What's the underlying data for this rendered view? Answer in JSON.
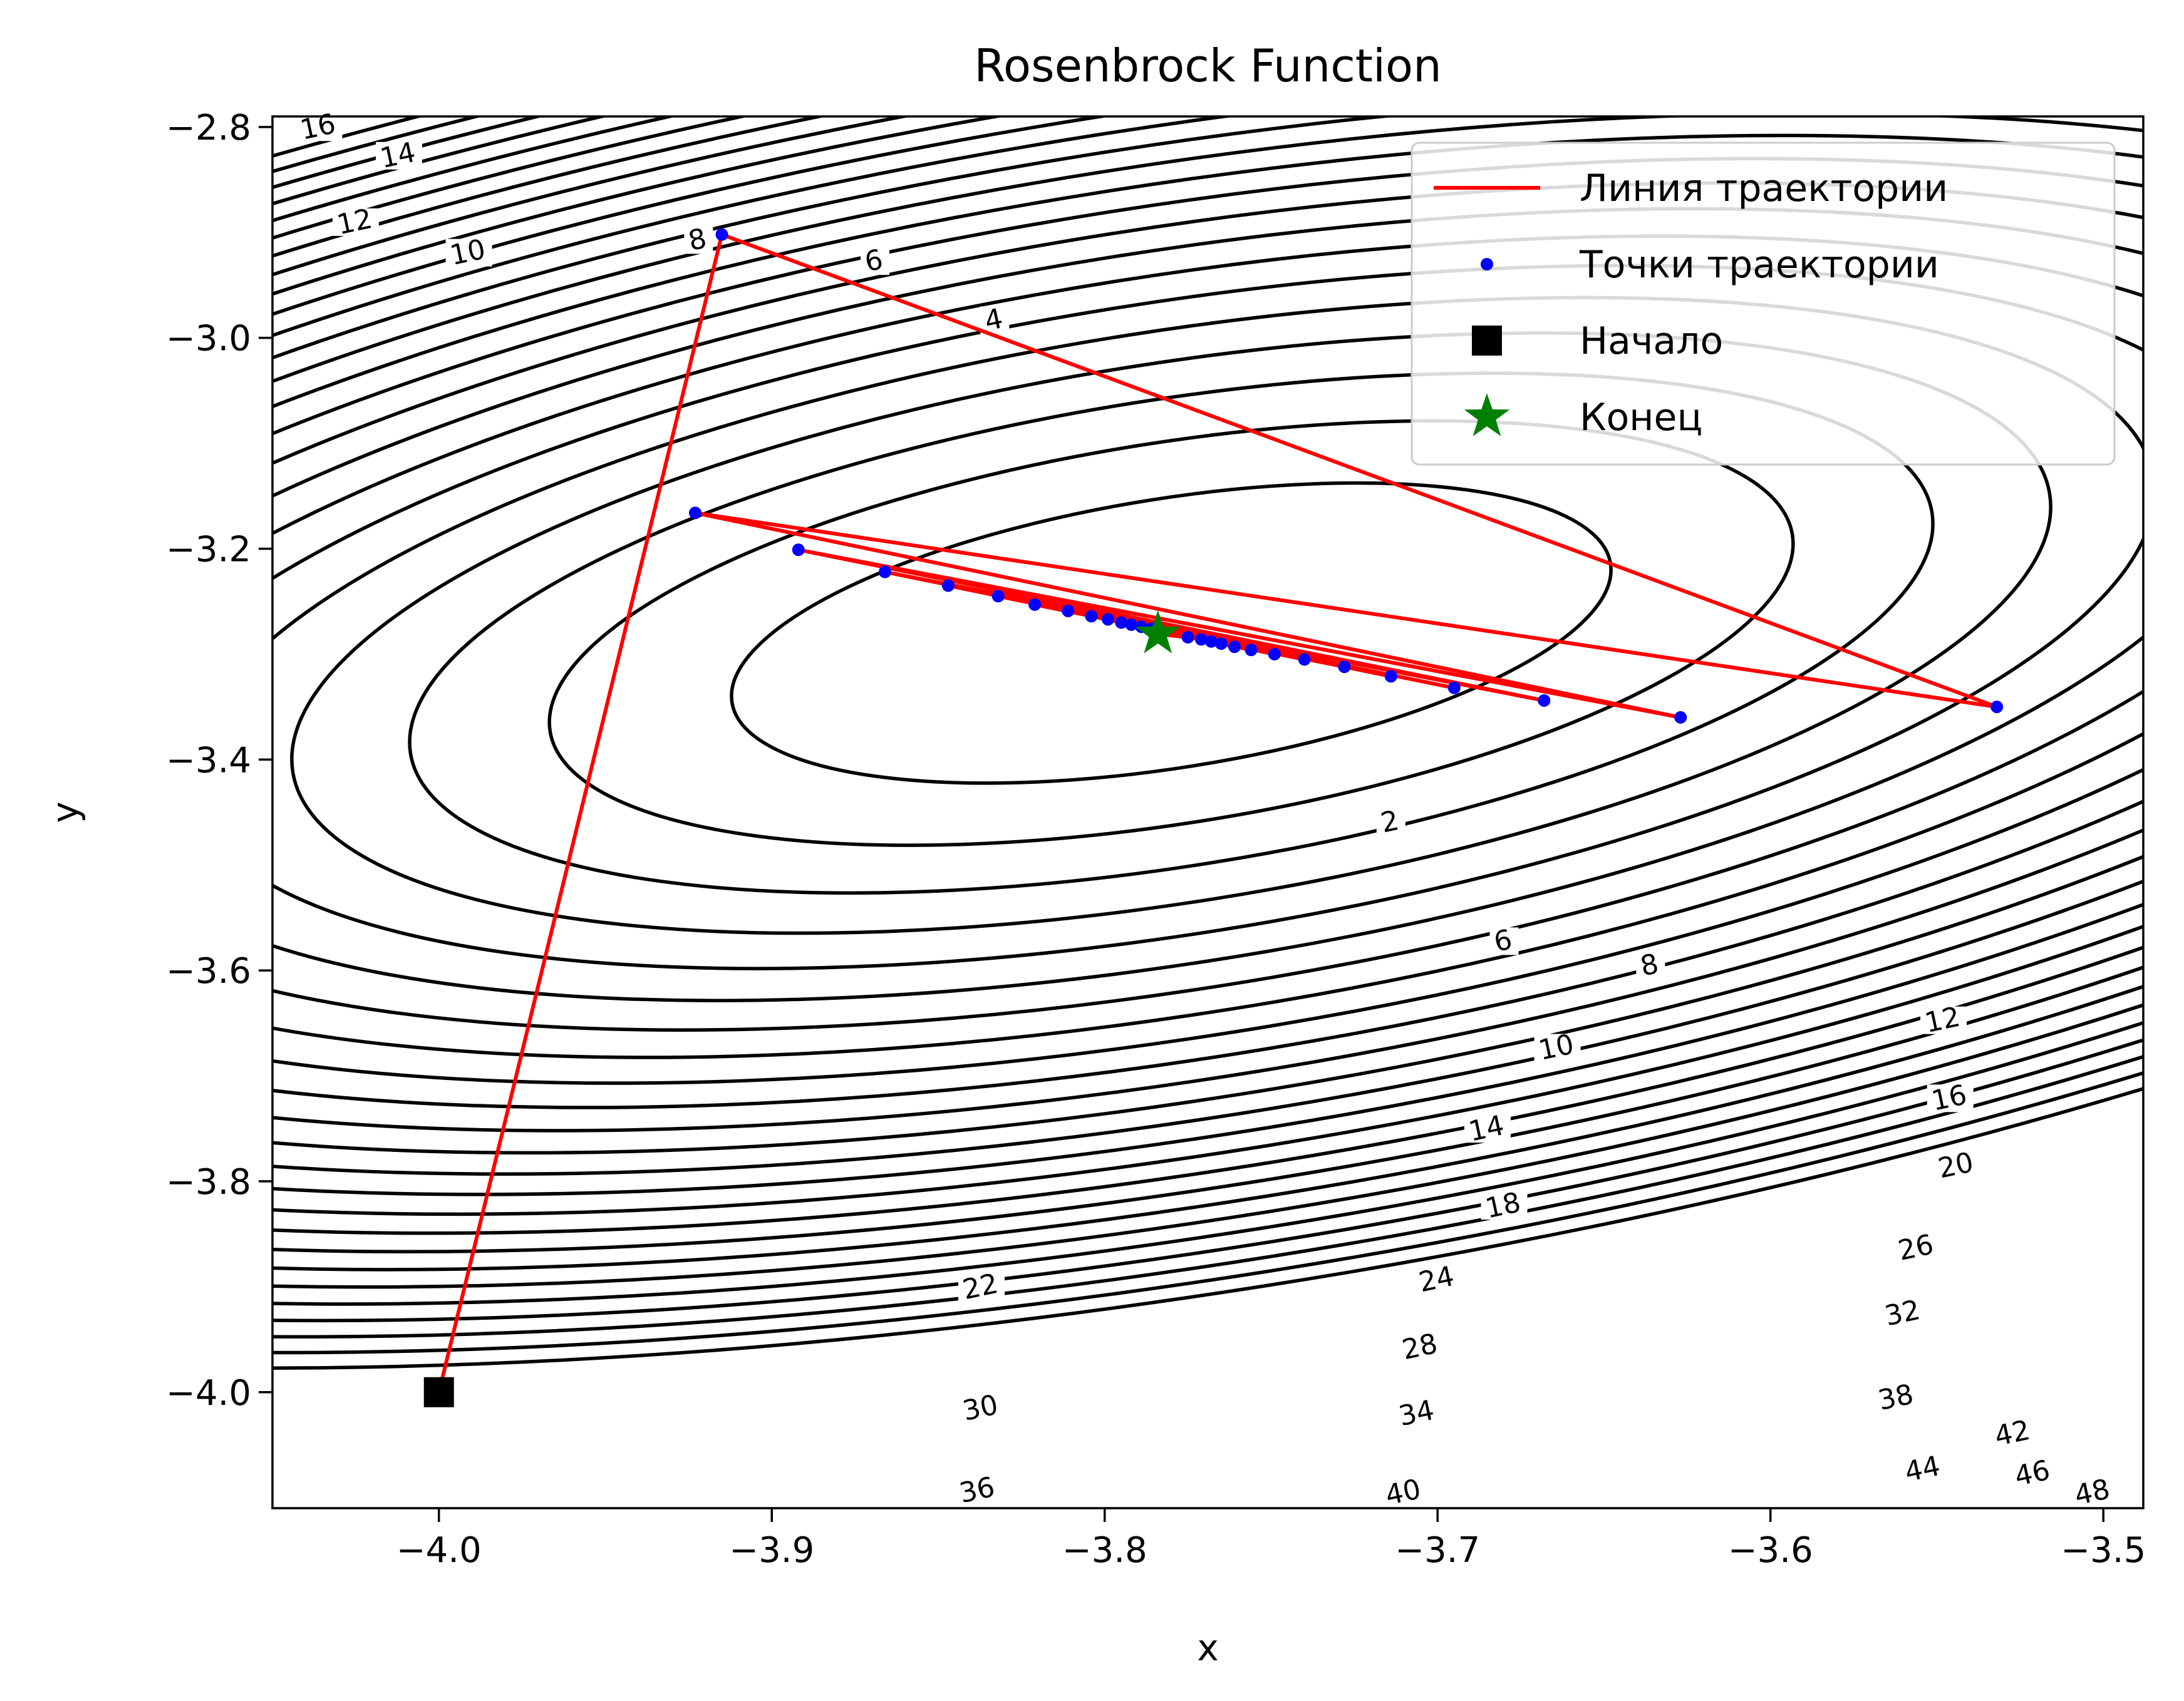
{
  "chart_data": {
    "type": "line",
    "title": "Rosenbrock Function",
    "xlabel": "x",
    "ylabel": "y",
    "xlim": [
      -4.05,
      -3.488
    ],
    "ylim": [
      -4.11,
      -2.79
    ],
    "x_ticks": [
      -4.0,
      -3.9,
      -3.8,
      -3.7,
      -3.6,
      -3.5
    ],
    "x_tick_labels": [
      "−4.0",
      "−3.9",
      "−3.8",
      "−3.7",
      "−3.6",
      "−3.5"
    ],
    "y_ticks": [
      -2.8,
      -3.0,
      -3.2,
      -3.4,
      -3.6,
      -3.8,
      -4.0
    ],
    "y_tick_labels": [
      "−2.8",
      "−3.0",
      "−3.2",
      "−3.4",
      "−3.6",
      "−3.8",
      "−4.0"
    ],
    "grid": false,
    "legend": {
      "position": "top-right",
      "entries": [
        {
          "label": "Линия траектории",
          "marker": "line",
          "color": "#ff0000"
        },
        {
          "label": "Точки траектории",
          "marker": "dot",
          "color": "#0000ff"
        },
        {
          "label": "Начало",
          "marker": "square",
          "color": "#000000"
        },
        {
          "label": "Конец",
          "marker": "star",
          "color": "#008000"
        }
      ]
    },
    "contour": {
      "color": "#000000",
      "center": [
        -3.78,
        -3.28
      ],
      "levels": [
        2,
        4,
        6,
        8,
        10,
        12,
        14,
        16,
        18,
        20,
        22,
        24,
        26,
        28,
        30,
        32,
        34,
        36,
        38,
        40,
        42,
        44,
        46,
        48
      ],
      "labels": [
        {
          "text": "16",
          "x": -4.036,
          "y": -2.805
        },
        {
          "text": "14",
          "x": -4.012,
          "y": -2.832
        },
        {
          "text": "12",
          "x": -4.025,
          "y": -2.895
        },
        {
          "text": "10",
          "x": -3.991,
          "y": -2.924
        },
        {
          "text": "8",
          "x": -3.922,
          "y": -2.912
        },
        {
          "text": "6",
          "x": -3.869,
          "y": -2.932
        },
        {
          "text": "4",
          "x": -3.833,
          "y": -2.988
        },
        {
          "text": "2",
          "x": -3.714,
          "y": -3.464
        },
        {
          "text": "6",
          "x": -3.68,
          "y": -3.577
        },
        {
          "text": "8",
          "x": -3.636,
          "y": -3.6
        },
        {
          "text": "12",
          "x": -3.548,
          "y": -3.652
        },
        {
          "text": "10",
          "x": -3.664,
          "y": -3.678
        },
        {
          "text": "16",
          "x": -3.546,
          "y": -3.726
        },
        {
          "text": "14",
          "x": -3.685,
          "y": -3.755
        },
        {
          "text": "20",
          "x": -3.544,
          "y": -3.79
        },
        {
          "text": "18",
          "x": -3.68,
          "y": -3.828
        },
        {
          "text": "26",
          "x": -3.556,
          "y": -3.868
        },
        {
          "text": "22",
          "x": -3.837,
          "y": -3.905
        },
        {
          "text": "24",
          "x": -3.7,
          "y": -3.898
        },
        {
          "text": "32",
          "x": -3.56,
          "y": -3.93
        },
        {
          "text": "28",
          "x": -3.705,
          "y": -3.962
        },
        {
          "text": "38",
          "x": -3.562,
          "y": -4.01
        },
        {
          "text": "30",
          "x": -3.837,
          "y": -4.02
        },
        {
          "text": "34",
          "x": -3.706,
          "y": -4.025
        },
        {
          "text": "42",
          "x": -3.527,
          "y": -4.044
        },
        {
          "text": "44",
          "x": -3.554,
          "y": -4.078
        },
        {
          "text": "46",
          "x": -3.521,
          "y": -4.082
        },
        {
          "text": "36",
          "x": -3.838,
          "y": -4.098
        },
        {
          "text": "40",
          "x": -3.71,
          "y": -4.1
        },
        {
          "text": "48",
          "x": -3.503,
          "y": -4.1
        }
      ]
    },
    "series": [
      {
        "name": "Линия траектории",
        "type": "line",
        "color": "#ff0000",
        "x": [
          -4.0,
          -3.915,
          -3.532,
          -3.923,
          -3.627,
          -3.892,
          -3.668,
          -3.866,
          -3.695,
          -3.847,
          -3.714,
          -3.832,
          -3.728,
          -3.821,
          -3.74,
          -3.811,
          -3.749,
          -3.804,
          -3.756,
          -3.799,
          -3.761,
          -3.795,
          -3.765,
          -3.792,
          -3.768,
          -3.789,
          -3.771,
          -3.786,
          -3.775,
          -3.784
        ],
        "y": [
          -4.0,
          -2.902,
          -3.35,
          -3.166,
          -3.36,
          -3.201,
          -3.344,
          -3.222,
          -3.332,
          -3.235,
          -3.321,
          -3.245,
          -3.312,
          -3.253,
          -3.305,
          -3.259,
          -3.3,
          -3.264,
          -3.296,
          -3.267,
          -3.293,
          -3.27,
          -3.29,
          -3.272,
          -3.288,
          -3.274,
          -3.286,
          -3.276,
          -3.284,
          -3.281
        ]
      },
      {
        "name": "Точки траектории",
        "type": "scatter",
        "color": "#0000ff",
        "x": [
          -3.915,
          -3.532,
          -3.923,
          -3.627,
          -3.892,
          -3.668,
          -3.866,
          -3.695,
          -3.847,
          -3.714,
          -3.832,
          -3.728,
          -3.821,
          -3.74,
          -3.811,
          -3.749,
          -3.804,
          -3.756,
          -3.799,
          -3.761,
          -3.795,
          -3.765,
          -3.792,
          -3.768,
          -3.789,
          -3.771,
          -3.786,
          -3.775,
          -3.784
        ],
        "y": [
          -2.902,
          -3.35,
          -3.166,
          -3.36,
          -3.201,
          -3.344,
          -3.222,
          -3.332,
          -3.235,
          -3.321,
          -3.245,
          -3.312,
          -3.253,
          -3.305,
          -3.259,
          -3.3,
          -3.264,
          -3.296,
          -3.267,
          -3.293,
          -3.27,
          -3.29,
          -3.272,
          -3.288,
          -3.274,
          -3.286,
          -3.276,
          -3.284,
          -3.281
        ]
      },
      {
        "name": "Начало",
        "type": "scatter",
        "marker": "square",
        "color": "#000000",
        "x": [
          -4.0
        ],
        "y": [
          -4.0
        ]
      },
      {
        "name": "Конец",
        "type": "scatter",
        "marker": "star",
        "color": "#008000",
        "x": [
          -3.784
        ],
        "y": [
          -3.281
        ]
      }
    ]
  }
}
